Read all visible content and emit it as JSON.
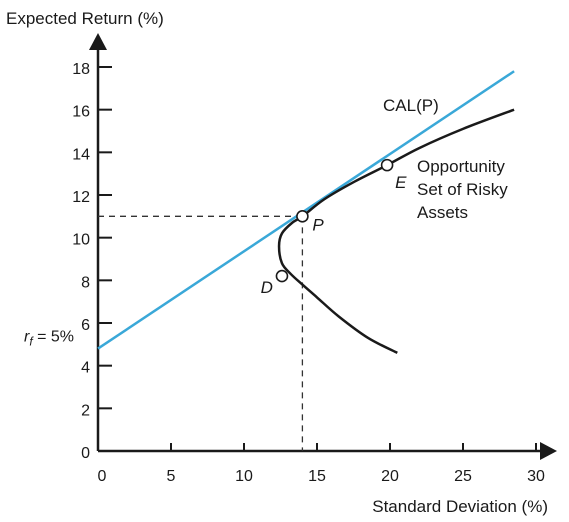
{
  "chart_data": {
    "type": "line",
    "xlabel": "Standard Deviation (%)",
    "ylabel": "Expected Return (%)",
    "xlim": [
      0,
      30
    ],
    "ylim": [
      0,
      18
    ],
    "x_ticks": [
      0,
      5,
      10,
      15,
      20,
      25,
      30
    ],
    "y_ticks": [
      0,
      2,
      4,
      6,
      8,
      10,
      12,
      14,
      16,
      18
    ],
    "x_tick_labels": [
      "0",
      "5",
      "10",
      "15",
      "20",
      "25",
      "30"
    ],
    "y_tick_labels": [
      "0",
      "2",
      "4",
      "6",
      "8",
      "10",
      "12",
      "14",
      "16",
      "18"
    ],
    "rf_label": "r",
    "rf_subscript": "f",
    "rf_value_text": " = 5%",
    "rf_value": 5,
    "grid": false,
    "series": [
      {
        "name": "CAL(P)",
        "kind": "line",
        "color": "#3aa8d8",
        "x": [
          0,
          28.5
        ],
        "y": [
          4.8,
          17.8
        ]
      },
      {
        "name": "Opportunity Set of Risky Assets",
        "kind": "curve",
        "color": "#1a1a1a",
        "x": [
          20.5,
          18.5,
          16.5,
          15.0,
          14.0,
          13.2,
          12.6,
          12.4,
          12.6,
          13.3,
          14.0,
          15.5,
          17.5,
          19.8,
          22.0,
          25.0,
          28.5
        ],
        "y": [
          4.6,
          5.3,
          6.3,
          7.2,
          7.8,
          8.3,
          8.8,
          9.6,
          10.2,
          10.7,
          11.0,
          11.8,
          12.6,
          13.4,
          14.2,
          15.1,
          16.0
        ]
      }
    ],
    "points": [
      {
        "label": "P",
        "x": 14.0,
        "y": 11.0,
        "dashed_guides": true
      },
      {
        "label": "E",
        "x": 19.8,
        "y": 13.4,
        "dashed_guides": false
      },
      {
        "label": "D",
        "x": 12.6,
        "y": 8.2,
        "dashed_guides": false
      }
    ],
    "annotations": {
      "cal_label": "CAL(P)",
      "opportunity_lines": [
        "Opportunity",
        "Set of Risky",
        "Assets"
      ]
    },
    "colors": {
      "cal": "#3aa8d8",
      "frontier": "#1a1a1a",
      "axis": "#1a1a1a"
    }
  }
}
